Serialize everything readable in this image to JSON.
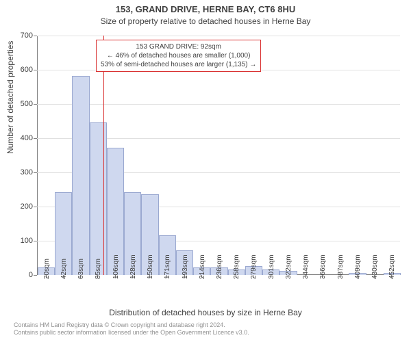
{
  "title": "153, GRAND DRIVE, HERNE BAY, CT6 8HU",
  "subtitle": "Size of property relative to detached houses in Herne Bay",
  "ylabel": "Number of detached properties",
  "xlabel": "Distribution of detached houses by size in Herne Bay",
  "footer_line1": "Contains HM Land Registry data © Crown copyright and database right 2024.",
  "footer_line2": "Contains public sector information licensed under the Open Government Licence v3.0.",
  "chart": {
    "type": "histogram",
    "ylim": [
      0,
      700
    ],
    "yticks": [
      0,
      100,
      200,
      300,
      400,
      500,
      600,
      700
    ],
    "x_categories": [
      "20sqm",
      "42sqm",
      "63sqm",
      "85sqm",
      "106sqm",
      "128sqm",
      "150sqm",
      "171sqm",
      "193sqm",
      "214sqm",
      "236sqm",
      "258sqm",
      "279sqm",
      "301sqm",
      "322sqm",
      "344sqm",
      "366sqm",
      "387sqm",
      "409sqm",
      "430sqm",
      "452sqm"
    ],
    "bar_values": [
      20,
      240,
      580,
      445,
      370,
      240,
      235,
      115,
      70,
      20,
      20,
      15,
      25,
      15,
      10,
      0,
      0,
      0,
      5,
      0,
      5
    ],
    "bar_fill": "#cfd8ef",
    "bar_stroke": "#9aa8d0",
    "bar_width_ratio": 0.92,
    "grid_color": "#e0e0e0",
    "axis_color": "#808080",
    "text_color": "#404040",
    "reference_line": {
      "x_position_sqm": 92,
      "color": "#d93030"
    },
    "annotation": {
      "line1": "153 GRAND DRIVE: 92sqm",
      "line2": "← 46% of detached houses are smaller (1,000)",
      "line3": "53% of semi-detached houses are larger (1,135) →",
      "border_color": "#d93030",
      "background": "#ffffff"
    }
  }
}
